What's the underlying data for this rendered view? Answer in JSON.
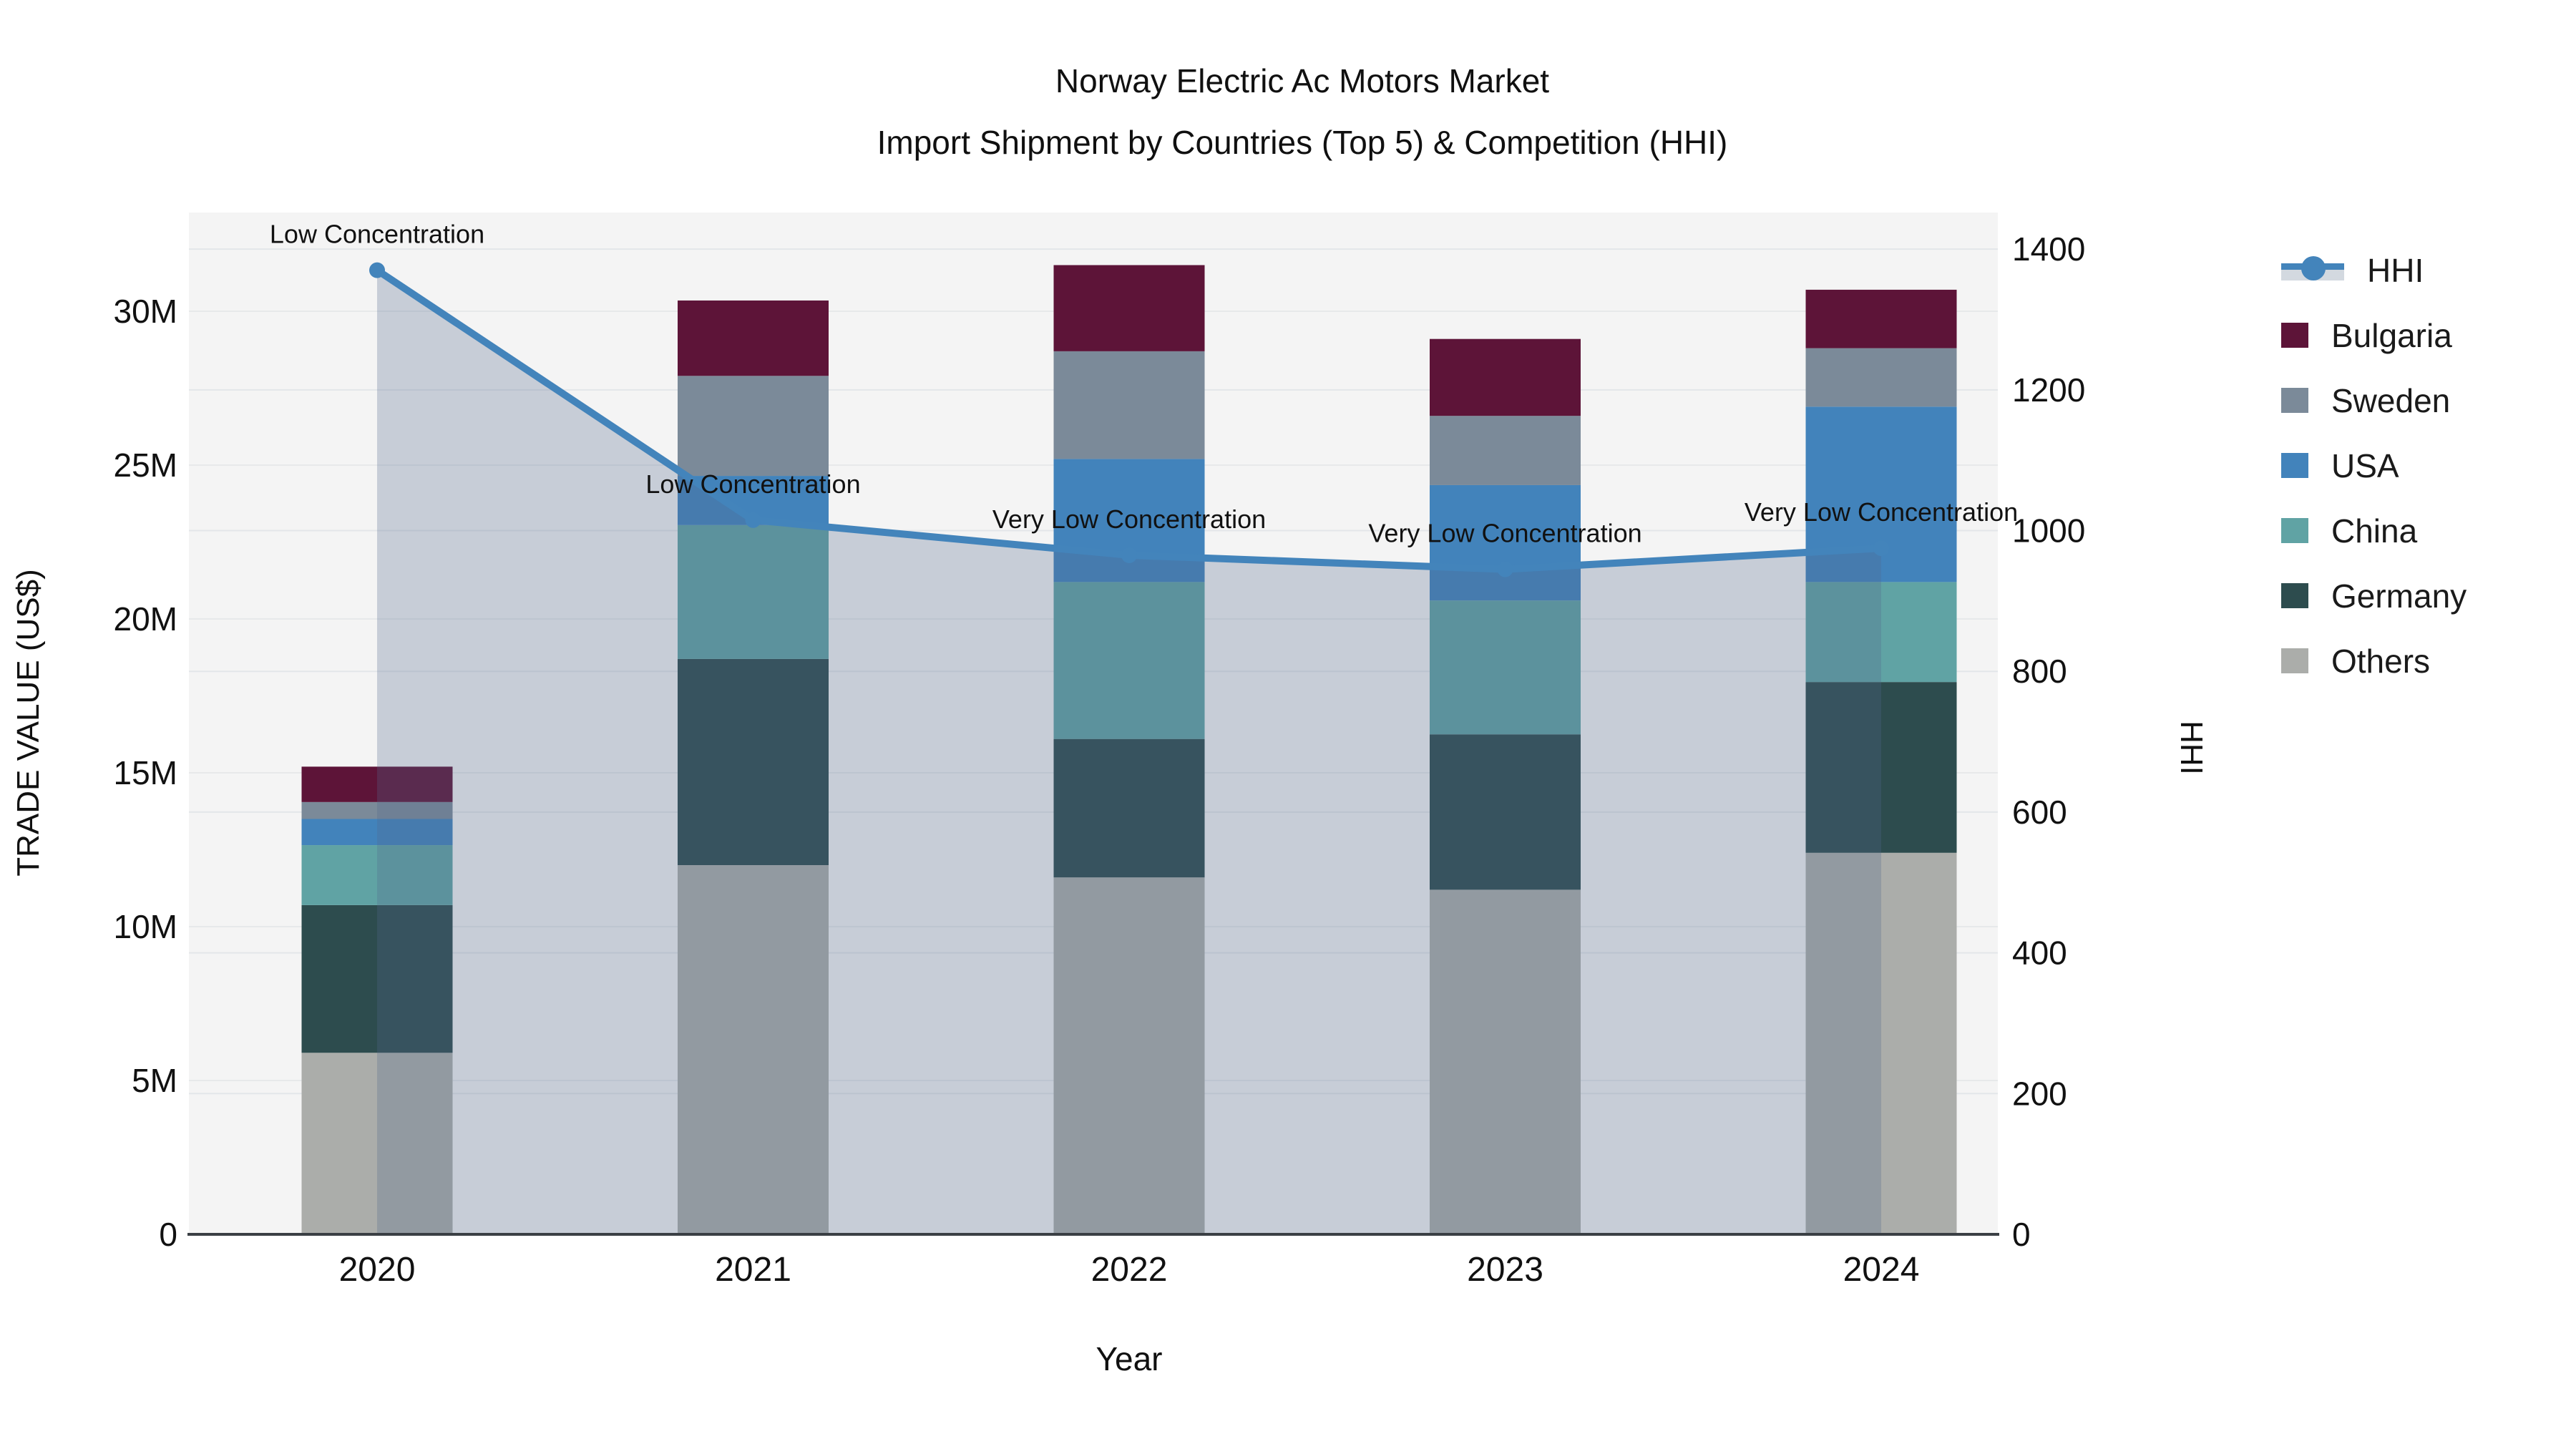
{
  "title": {
    "line1": "Norway Electric Ac Motors Market",
    "line2": "Import Shipment by Countries (Top 5) & Competition (HHI)"
  },
  "axes": {
    "x_title": "Year",
    "y_left_title": "TRADE VALUE (US$)",
    "y_right_title": "HHI",
    "y_left_tick_labels": [
      "0",
      "5M",
      "10M",
      "15M",
      "20M",
      "25M",
      "30M"
    ],
    "y_left_tick_values": [
      0,
      5,
      10,
      15,
      20,
      25,
      30
    ],
    "y_right_tick_labels": [
      "0",
      "200",
      "400",
      "600",
      "800",
      "1000",
      "1200",
      "1400"
    ],
    "y_right_tick_values": [
      0,
      200,
      400,
      600,
      800,
      1000,
      1200,
      1400
    ]
  },
  "legend": {
    "items": [
      {
        "label": "HHI",
        "type": "line",
        "color": "#4384bb"
      },
      {
        "label": "Bulgaria",
        "type": "swatch",
        "color": "#5d1438"
      },
      {
        "label": "Sweden",
        "type": "swatch",
        "color": "#7b8a99"
      },
      {
        "label": "USA",
        "type": "swatch",
        "color": "#4283bb"
      },
      {
        "label": "China",
        "type": "swatch",
        "color": "#60a3a4"
      },
      {
        "label": "Germany",
        "type": "swatch",
        "color": "#2d4c4e"
      },
      {
        "label": "Others",
        "type": "swatch",
        "color": "#abadaa"
      }
    ]
  },
  "colors": {
    "plot_bg": "#f4f4f4",
    "grid_left": "#e7e9ea",
    "grid_right": "#e3e6e9",
    "axis_line": "#3a3f44",
    "hhi_line": "#4384bb",
    "hhi_fill": "rgba(82,104,139,0.28)",
    "text": "#111111"
  },
  "chart_data": {
    "type": "bar",
    "subtype": "stacked-bars-with-line-overlay",
    "title": "Norway Electric Ac Motors Market — Import Shipment by Countries (Top 5) & Competition (HHI)",
    "categories": [
      "2020",
      "2021",
      "2022",
      "2023",
      "2024"
    ],
    "bar_value_unit": "Million US$",
    "series": [
      {
        "name": "Others",
        "color": "#abadaa",
        "values": [
          5.9,
          12.0,
          11.6,
          11.2,
          12.4
        ]
      },
      {
        "name": "Germany",
        "color": "#2d4c4e",
        "values": [
          4.8,
          6.7,
          4.5,
          5.05,
          5.55
        ]
      },
      {
        "name": "China",
        "color": "#60a3a4",
        "values": [
          1.95,
          4.35,
          5.1,
          4.35,
          3.25
        ]
      },
      {
        "name": "USA",
        "color": "#4283bb",
        "values": [
          0.85,
          1.6,
          4.0,
          3.75,
          5.7
        ]
      },
      {
        "name": "Sweden",
        "color": "#7b8a99",
        "values": [
          0.55,
          3.25,
          3.5,
          2.25,
          1.9
        ]
      },
      {
        "name": "Bulgaria",
        "color": "#5d1438",
        "values": [
          1.15,
          2.45,
          2.8,
          2.5,
          1.9
        ]
      }
    ],
    "bar_totals": [
      15.2,
      30.35,
      31.5,
      29.1,
      30.7
    ],
    "line_series": {
      "name": "HHI",
      "axis": "right",
      "color": "#4384bb",
      "values": [
        1370,
        1015,
        965,
        945,
        975
      ],
      "area_fill": true
    },
    "annotations": [
      "Low Concentration",
      "Low Concentration",
      "Very Low Concentration",
      "Very Low Concentration",
      "Very Low Concentration"
    ],
    "xlabel": "Year",
    "ylabel_left": "TRADE VALUE (US$)",
    "ylabel_right": "HHI",
    "ylim_left_millions": [
      0,
      33.2
    ],
    "ylim_right": [
      0,
      1452
    ],
    "grid": true,
    "legend_position": "right"
  }
}
